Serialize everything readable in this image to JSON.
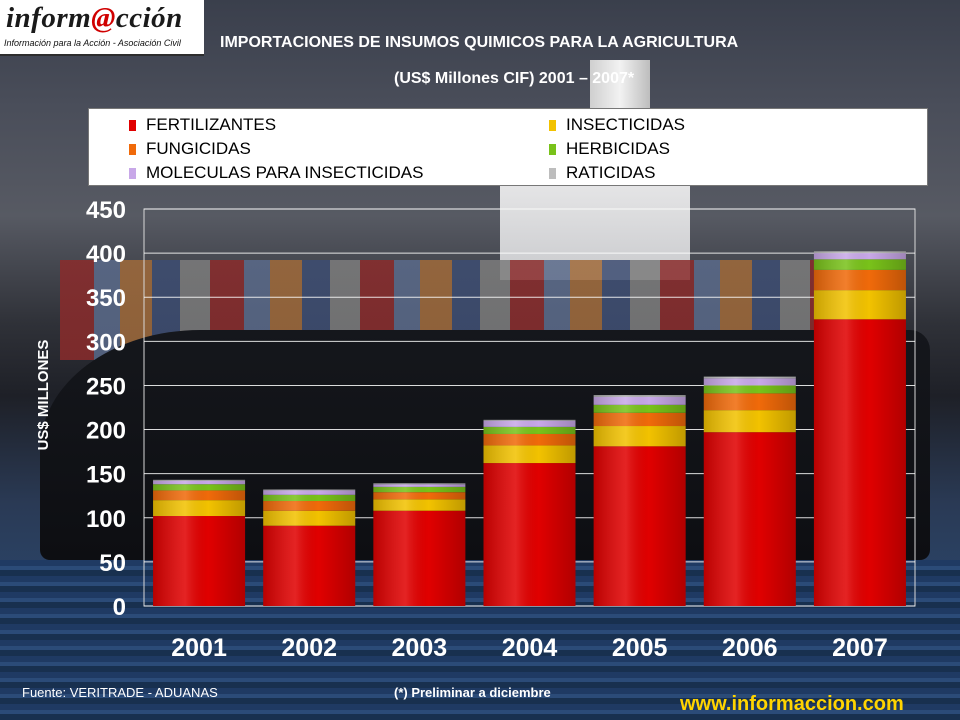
{
  "logo": {
    "wordmark_before": "inform",
    "wordmark_at": "@",
    "wordmark_after": "cción",
    "tagline": "Información para la Acción - Asociación Civil"
  },
  "header": {
    "title_line1": "IMPORTACIONES DE INSUMOS QUIMICOS PARA LA AGRICULTURA",
    "title_line2": "(US$ Millones CIF) 2001 – 2007*"
  },
  "footer": {
    "source": "Fuente: VERITRADE - ADUANAS",
    "note": "(*) Preliminar a diciembre",
    "url": "www.informaccion.com"
  },
  "colors": {
    "accent_url": "#ffd400",
    "logo_at": "#d00000"
  },
  "chart_data": {
    "type": "bar",
    "stacked": true,
    "title": "IMPORTACIONES DE INSUMOS QUIMICOS PARA LA AGRICULTURA",
    "subtitle": "(US$ Millones CIF) 2001 – 2007*",
    "xlabel": "",
    "ylabel": "US$ MILLONES",
    "ylim": [
      0,
      450
    ],
    "yticks": [
      "0",
      "50",
      "100",
      "150",
      "200",
      "250",
      "300",
      "350",
      "400",
      "450"
    ],
    "categories": [
      "2001",
      "2002",
      "2003",
      "2004",
      "2005",
      "2006",
      "2007"
    ],
    "grid": true,
    "legend_position": "top",
    "series": [
      {
        "name": "FERTILIZANTES",
        "color": "#e00000",
        "values": [
          102,
          91,
          108,
          162,
          181,
          197,
          325
        ]
      },
      {
        "name": "INSECTICIDAS",
        "color": "#f2c200",
        "values": [
          18,
          17,
          13,
          20,
          23,
          25,
          33
        ]
      },
      {
        "name": "FUNGICIDAS",
        "color": "#f06a0a",
        "values": [
          11,
          11,
          8,
          13,
          15,
          19,
          23
        ]
      },
      {
        "name": "HERBICIDAS",
        "color": "#79c21a",
        "values": [
          7,
          7,
          6,
          8,
          9,
          9,
          12
        ]
      },
      {
        "name": "MOLECULAS PARA INSECTICIDAS",
        "color": "#c8a8e8",
        "values": [
          4,
          5,
          3,
          7,
          9,
          8,
          7
        ]
      },
      {
        "name": "RATICIDAS",
        "color": "#bdbdbd",
        "values": [
          1,
          1,
          1,
          1,
          2,
          2,
          2
        ]
      }
    ]
  }
}
